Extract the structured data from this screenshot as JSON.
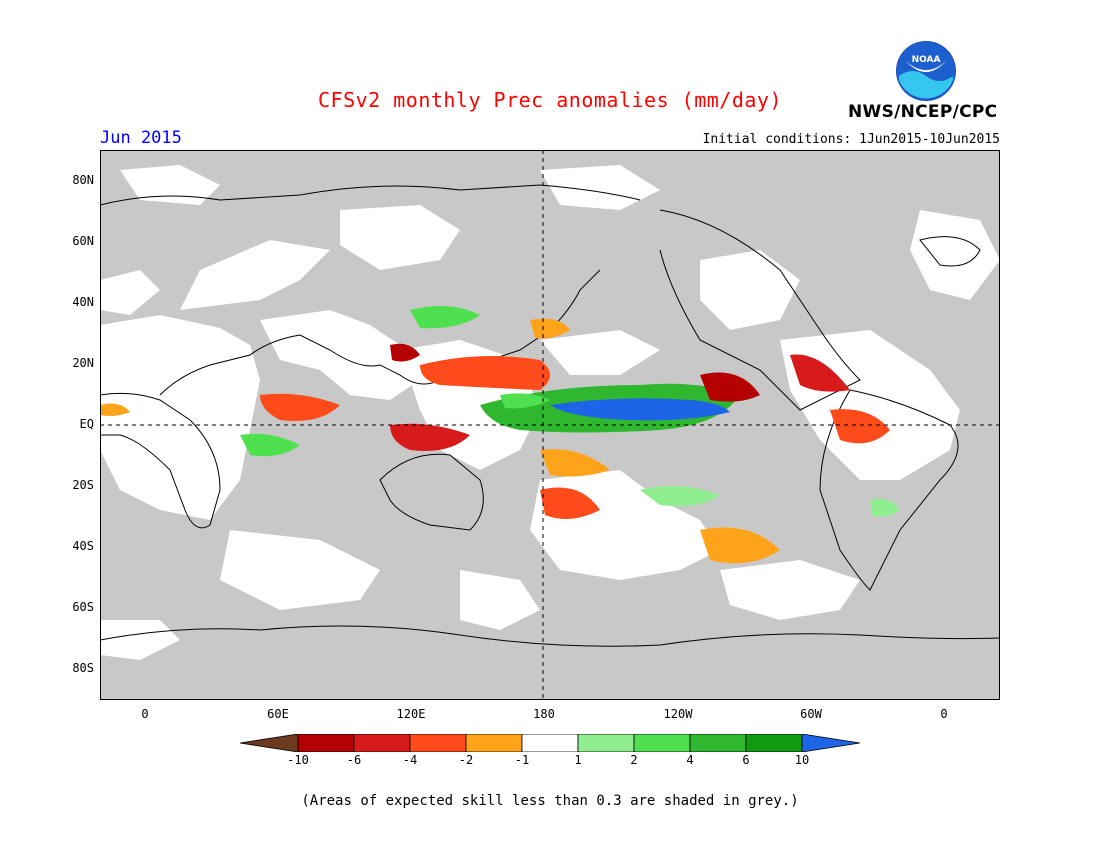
{
  "header": {
    "title": "CFSv2 monthly Prec anomalies (mm/day)",
    "month": "Jun 2015",
    "initial_conditions": "Initial conditions: 1Jun2015-10Jun2015",
    "agency": "NWS/NCEP/CPC",
    "logo_text": "NOAA"
  },
  "map": {
    "projection": "equirectangular, centered 180",
    "lat_range": [
      -90,
      90
    ],
    "lon_range": [
      -20,
      380
    ],
    "lat_labels": [
      "80N",
      "60N",
      "40N",
      "20N",
      "EQ",
      "20S",
      "40S",
      "60S",
      "80S"
    ],
    "lon_labels": [
      "0",
      "60E",
      "120E",
      "180",
      "120W",
      "60W",
      "0"
    ],
    "reference_lines": [
      "equator",
      "dateline 180"
    ],
    "background_land_ocean": "white",
    "grey_skill_mask_color": "#c8c8c8"
  },
  "colorbar": {
    "labels": [
      "-10",
      "-6",
      "-4",
      "-2",
      "-1",
      "1",
      "2",
      "4",
      "6",
      "10"
    ],
    "colors": [
      "#6b3a1f",
      "#b40000",
      "#d71a1a",
      "#ff4a1a",
      "#ffa31a",
      "#ffffff",
      "#90ee90",
      "#4fe04f",
      "#2fb82f",
      "#109a10",
      "#1e64e6"
    ]
  },
  "footnote": "(Areas of expected skill less than 0.3 are shaded in grey.)"
}
